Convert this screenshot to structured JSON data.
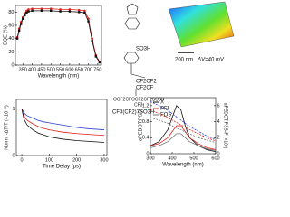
{
  "chart_data": [
    {
      "type": "line",
      "ylabel": "EQE (%)",
      "xlabel": "Wavelength (nm)",
      "x": [
        320,
        330,
        340,
        350,
        360,
        370,
        380,
        400,
        450,
        500,
        550,
        600,
        650,
        680,
        700,
        720,
        740,
        760
      ],
      "series": [
        {
          "color": "#e0201b",
          "marker": "circle",
          "values": [
            42,
            55,
            65,
            72,
            78,
            82,
            84,
            85,
            85,
            85,
            84,
            84,
            83,
            82,
            70,
            40,
            15,
            5
          ]
        },
        {
          "color": "#111111",
          "marker": "square",
          "values": [
            40,
            52,
            62,
            70,
            75,
            79,
            81,
            82,
            82,
            82,
            81,
            81,
            80,
            79,
            66,
            37,
            13,
            4
          ]
        }
      ],
      "xlim": [
        310,
        770
      ],
      "xticks": [
        350,
        400,
        450,
        500,
        550,
        600,
        650,
        700,
        750
      ],
      "ylim": [
        0,
        90
      ],
      "yticks": [
        0,
        20,
        40,
        60,
        80
      ]
    },
    {
      "type": "line",
      "ylabel": "Norm. -ΔT/T (×10⁻³)",
      "xlabel": "Time Delay (ps)",
      "x": [
        0,
        5,
        10,
        20,
        40,
        60,
        80,
        100,
        150,
        200,
        250,
        300
      ],
      "series": [
        {
          "color": "#2a3fd6",
          "values": [
            1.0,
            0.95,
            0.9,
            0.85,
            0.8,
            0.75,
            0.72,
            0.7,
            0.65,
            0.6,
            0.57,
            0.55
          ]
        },
        {
          "color": "#e0201b",
          "values": [
            1.0,
            0.9,
            0.82,
            0.75,
            0.68,
            0.62,
            0.58,
            0.55,
            0.5,
            0.47,
            0.45,
            0.43
          ]
        },
        {
          "color": "#111111",
          "values": [
            1.0,
            0.85,
            0.75,
            0.65,
            0.55,
            0.48,
            0.44,
            0.4,
            0.35,
            0.32,
            0.3,
            0.28
          ]
        }
      ],
      "xlim": [
        -20,
        310
      ],
      "xticks": [
        0,
        100,
        200,
        300
      ],
      "ylim": [
        0,
        1.2
      ],
      "yticks": [
        0,
        1
      ]
    },
    {
      "type": "line",
      "ylabel": "αPEDOT:PSS",
      "y2label": "αPEDOT:PSS-F (×10³)",
      "xlabel": "Wavelength (nm)",
      "x": [
        300,
        340,
        380,
        400,
        420,
        440,
        460,
        480,
        520,
        560,
        600
      ],
      "series": [
        {
          "name": "X",
          "color": "#111111",
          "values": [
            0.2,
            0.3,
            0.6,
            0.9,
            1.2,
            1.1,
            0.7,
            0.4,
            0.2,
            0.1,
            0.05
          ]
        },
        {
          "name": "PFI",
          "color": "#e0201b",
          "values": [
            0.2,
            0.25,
            0.4,
            0.55,
            0.7,
            0.7,
            0.55,
            0.4,
            0.25,
            0.15,
            0.1
          ]
        },
        {
          "name": "FOS",
          "color": "#777777",
          "values": [
            0.15,
            0.2,
            0.3,
            0.4,
            0.5,
            0.5,
            0.4,
            0.3,
            0.2,
            0.12,
            0.08
          ]
        },
        {
          "color": "#2a3fd6",
          "axis": "y2",
          "dashed": true,
          "values": [
            6.5,
            6,
            5.4,
            5,
            4.6,
            4.2,
            3.8,
            3.4,
            2.8,
            2.2,
            1.8
          ]
        },
        {
          "color": "#e0201b",
          "axis": "y2",
          "dashed": true,
          "values": [
            5.5,
            5,
            4.5,
            4.2,
            3.9,
            3.6,
            3.3,
            3,
            2.5,
            2,
            1.6
          ]
        },
        {
          "color": "#777777",
          "axis": "y2",
          "dashed": true,
          "values": [
            4.5,
            4.2,
            3.8,
            3.5,
            3.2,
            3,
            2.7,
            2.5,
            2,
            1.7,
            1.4
          ]
        }
      ],
      "xlim": [
        300,
        600
      ],
      "xticks": [
        300,
        400,
        500,
        600
      ],
      "ylim": [
        0,
        1.4
      ],
      "yticks": [
        0,
        0.4,
        0.8,
        1.2
      ],
      "y2lim": [
        0,
        7
      ],
      "y2ticks": [
        0,
        2,
        4,
        6
      ]
    }
  ],
  "structures": {
    "pss": "SO3H",
    "nafion_top": "CF2CF2",
    "nafion_mid": "CF2CF",
    "nafion_side": "OCF2CFOCF2CF2SO3H",
    "nafion_cf3": "CF3",
    "fos": "CF3(CF2)7SO3H"
  },
  "afm": {
    "scale": "200 nm",
    "range": "ΔV=40 mV"
  }
}
